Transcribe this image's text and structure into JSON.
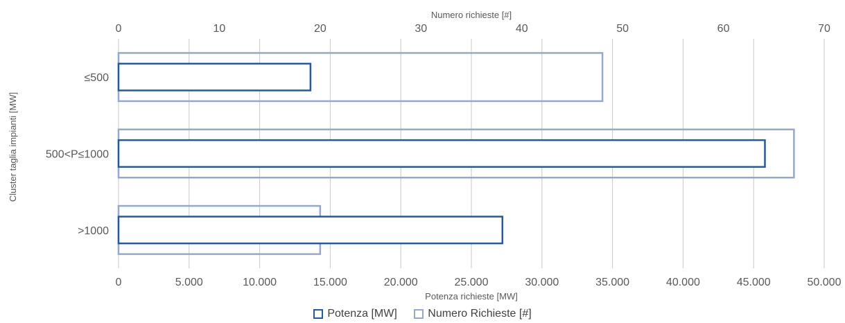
{
  "chart_data": {
    "type": "bar",
    "orientation": "horizontal",
    "categories": [
      "≤500",
      "500<P≤1000",
      ">1000"
    ],
    "series": [
      {
        "name": "Potenza [MW]",
        "axis": "bottom",
        "values": [
          13600,
          45800,
          27200
        ],
        "color": "#1f5aa6"
      },
      {
        "name": "Numero Richieste [#]",
        "axis": "top",
        "values": [
          48,
          67,
          20
        ],
        "color": "#95a8cf"
      }
    ],
    "x_bottom": {
      "label": "Potenza richieste [MW]",
      "range": [
        0,
        50000
      ],
      "ticks": [
        "0",
        "5.000",
        "10.000",
        "15.000",
        "20.000",
        "25.000",
        "30.000",
        "35.000",
        "40.000",
        "45.000",
        "50.000"
      ]
    },
    "x_top": {
      "label": "Numero richieste [#]",
      "range": [
        0,
        70
      ],
      "ticks": [
        "0",
        "10",
        "20",
        "30",
        "40",
        "50",
        "60",
        "70"
      ]
    },
    "ylabel": "Cluster taglia impianti [MW]",
    "grid": "vertical",
    "legend_position": "bottom-center",
    "legend": [
      "Potenza [MW]",
      "Numero Richieste [#]"
    ]
  }
}
